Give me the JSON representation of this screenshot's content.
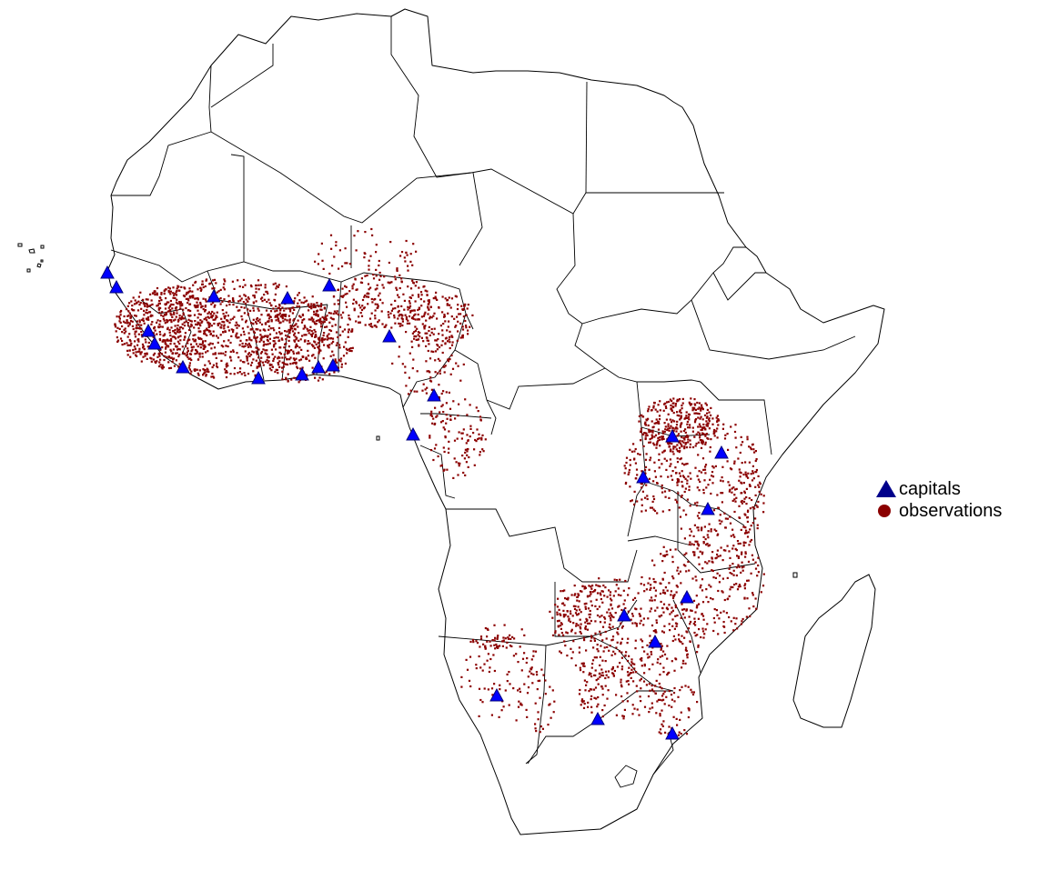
{
  "legend": {
    "capitals_label": "capitals",
    "observations_label": "observations"
  },
  "colors": {
    "observations": "#8b0000",
    "capitals_fill": "#0000ff",
    "capitals_legend": "#00008b",
    "borders": "#000000",
    "background": "#ffffff"
  },
  "icons": {
    "capital": "triangle",
    "observation": "dot"
  }
}
